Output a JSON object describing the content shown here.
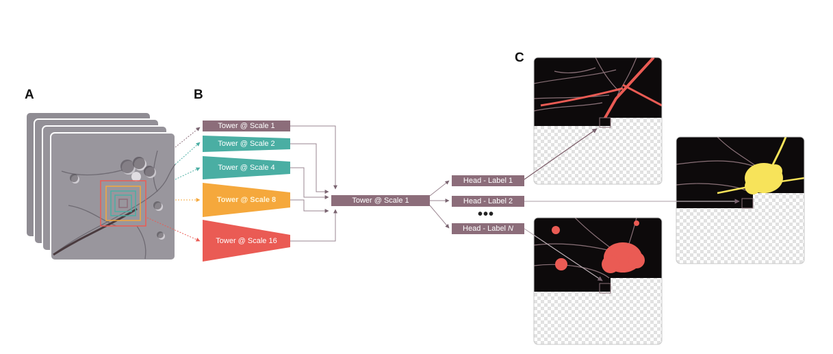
{
  "panels": {
    "a": "A",
    "b": "B",
    "c": "C"
  },
  "towers": [
    {
      "label": "Tower @ Scale 1",
      "color": "#8c6d7a"
    },
    {
      "label": "Tower @ Scale 2",
      "color": "#4aaea3"
    },
    {
      "label": "Tower @ Scale 4",
      "color": "#4aaea3"
    },
    {
      "label": "Tower @ Scale 8",
      "color": "#f5a83c"
    },
    {
      "label": "Tower @ Scale 16",
      "color": "#ea5b54"
    }
  ],
  "merge_tower": {
    "label": "Tower @ Scale 1",
    "color": "#8c6d7a"
  },
  "heads": [
    {
      "label": "Head - Label 1",
      "suffix": ""
    },
    {
      "label": "Head - Label 2",
      "suffix": ""
    },
    {
      "label": "Head - Label",
      "suffix": "N"
    }
  ],
  "ellipsis": "•••",
  "colors": {
    "mauve": "#8c6d7a",
    "teal": "#4aaea3",
    "orange": "#f5a83c",
    "red": "#ea5b54",
    "yellow": "#f7e35a",
    "arrow": "#9a8590"
  }
}
